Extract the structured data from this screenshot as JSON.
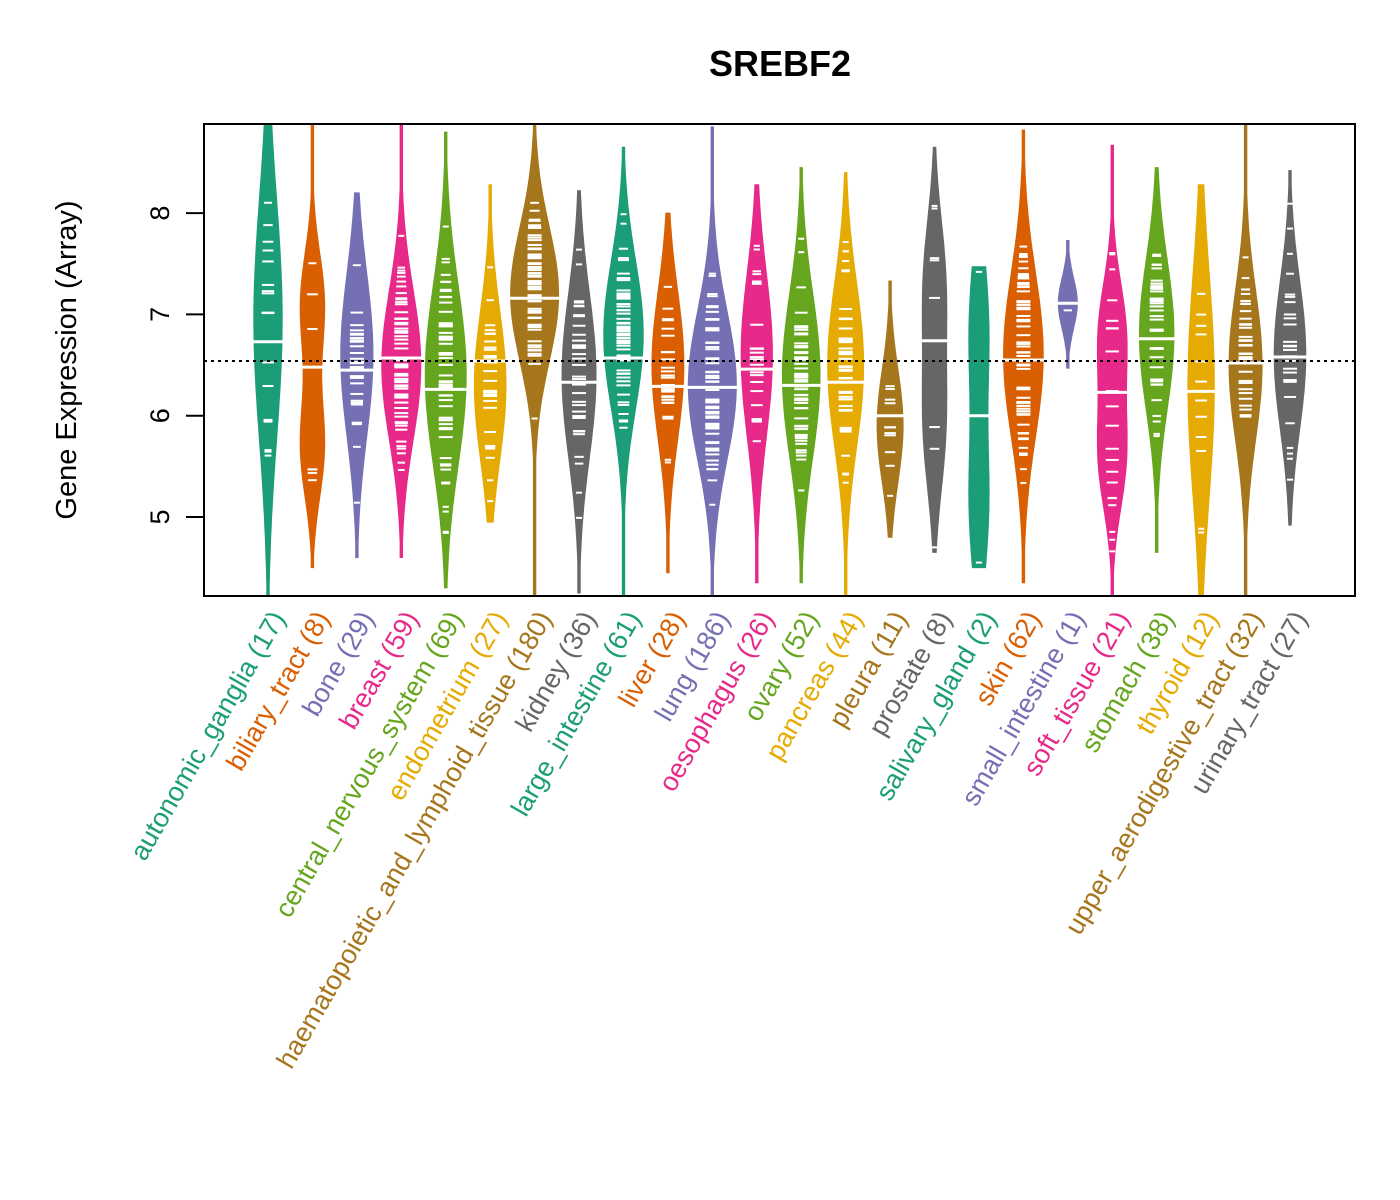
{
  "chart_data": {
    "type": "violin",
    "title": "SREBF2",
    "xlabel": "",
    "ylabel": "Gene Expression (Array)",
    "ylim": [
      4.22,
      8.88
    ],
    "yticks": [
      5,
      6,
      7,
      8
    ],
    "reference_line": 6.54,
    "grid": false,
    "legend": "none",
    "palette": [
      "#1B9E77",
      "#D95F02",
      "#7570B3",
      "#E7298A",
      "#66A61E",
      "#E6AB02",
      "#A6761D",
      "#666666"
    ],
    "categories": [
      {
        "name": "autonomic_ganglia",
        "n": 17,
        "median": 6.73,
        "min": 4.22,
        "max": 8.88,
        "mode_values": [
          6.95
        ],
        "q1": 5.9,
        "q3": 7.5
      },
      {
        "name": "biliary_tract",
        "n": 8,
        "median": 6.48,
        "min": 4.5,
        "max": 8.88,
        "mode_values": [
          7.1,
          5.7
        ],
        "q1": 5.8,
        "q3": 7.05
      },
      {
        "name": "bone",
        "n": 29,
        "median": 6.45,
        "min": 4.6,
        "max": 8.2,
        "mode_values": [
          6.6
        ],
        "q1": 6.0,
        "q3": 7.1
      },
      {
        "name": "breast",
        "n": 59,
        "median": 6.57,
        "min": 4.6,
        "max": 8.88,
        "mode_values": [
          6.5
        ],
        "q1": 6.0,
        "q3": 7.0
      },
      {
        "name": "central_nervous_system",
        "n": 69,
        "median": 6.26,
        "min": 4.3,
        "max": 8.8,
        "mode_values": [
          6.4
        ],
        "q1": 5.7,
        "q3": 6.9
      },
      {
        "name": "endometrium",
        "n": 27,
        "median": 6.54,
        "min": 4.95,
        "max": 8.28,
        "mode_values": [
          6.3
        ],
        "q1": 6.0,
        "q3": 7.0
      },
      {
        "name": "haematopoietic_and_lymphoid_tissue",
        "n": 180,
        "median": 7.16,
        "min": 4.22,
        "max": 8.88,
        "mode_values": [
          7.2
        ],
        "q1": 6.7,
        "q3": 7.6
      },
      {
        "name": "kidney",
        "n": 36,
        "median": 6.33,
        "min": 4.25,
        "max": 8.22,
        "mode_values": [
          6.4
        ],
        "q1": 5.8,
        "q3": 6.9
      },
      {
        "name": "large_intestine",
        "n": 61,
        "median": 6.57,
        "min": 4.22,
        "max": 8.65,
        "mode_values": [
          6.8
        ],
        "q1": 6.1,
        "q3": 7.1
      },
      {
        "name": "liver",
        "n": 28,
        "median": 6.29,
        "min": 4.45,
        "max": 8.0,
        "mode_values": [
          6.5
        ],
        "q1": 5.8,
        "q3": 6.8
      },
      {
        "name": "lung",
        "n": 186,
        "median": 6.28,
        "min": 4.22,
        "max": 8.85,
        "mode_values": [
          6.3
        ],
        "q1": 5.8,
        "q3": 6.8
      },
      {
        "name": "oesophagus",
        "n": 26,
        "median": 6.46,
        "min": 4.35,
        "max": 8.28,
        "mode_values": [
          6.6
        ],
        "q1": 5.9,
        "q3": 7.0
      },
      {
        "name": "ovary",
        "n": 52,
        "median": 6.3,
        "min": 4.35,
        "max": 8.45,
        "mode_values": [
          6.4
        ],
        "q1": 5.8,
        "q3": 6.9
      },
      {
        "name": "pancreas",
        "n": 44,
        "median": 6.33,
        "min": 4.22,
        "max": 8.4,
        "mode_values": [
          6.5
        ],
        "q1": 5.8,
        "q3": 6.9
      },
      {
        "name": "pleura",
        "n": 11,
        "median": 6.0,
        "min": 4.8,
        "max": 7.33,
        "mode_values": [
          5.9
        ],
        "q1": 5.65,
        "q3": 6.4
      },
      {
        "name": "prostate",
        "n": 8,
        "median": 6.74,
        "min": 4.65,
        "max": 8.65,
        "mode_values": [
          7.3,
          5.9
        ],
        "q1": 5.9,
        "q3": 7.5
      },
      {
        "name": "salivary_gland",
        "n": 2,
        "median": 6.0,
        "min": 4.5,
        "max": 7.47,
        "mode_values": [
          6.87,
          5.12
        ],
        "q1": 5.12,
        "q3": 6.87
      },
      {
        "name": "skin",
        "n": 62,
        "median": 6.55,
        "min": 4.35,
        "max": 8.82,
        "mode_values": [
          6.6
        ],
        "q1": 6.0,
        "q3": 7.1
      },
      {
        "name": "small_intestine",
        "n": 1,
        "median": 7.11,
        "min": 6.47,
        "max": 7.73,
        "mode_values": [
          7.11
        ],
        "q1": 7.11,
        "q3": 7.11
      },
      {
        "name": "soft_tissue",
        "n": 21,
        "median": 6.23,
        "min": 4.22,
        "max": 8.67,
        "mode_values": [
          6.8,
          5.6
        ],
        "q1": 5.6,
        "q3": 6.9
      },
      {
        "name": "stomach",
        "n": 38,
        "median": 6.76,
        "min": 4.65,
        "max": 8.45,
        "mode_values": [
          6.8
        ],
        "q1": 6.3,
        "q3": 7.3
      },
      {
        "name": "thyroid",
        "n": 12,
        "median": 6.24,
        "min": 4.22,
        "max": 8.28,
        "mode_values": [
          6.3
        ],
        "q1": 5.5,
        "q3": 7.0
      },
      {
        "name": "upper_aerodigestive_tract",
        "n": 32,
        "median": 6.52,
        "min": 4.22,
        "max": 8.88,
        "mode_values": [
          6.5
        ],
        "q1": 6.0,
        "q3": 7.0
      },
      {
        "name": "urinary_tract",
        "n": 27,
        "median": 6.58,
        "min": 4.92,
        "max": 8.42,
        "mode_values": [
          6.6
        ],
        "q1": 6.1,
        "q3": 7.1
      }
    ]
  }
}
